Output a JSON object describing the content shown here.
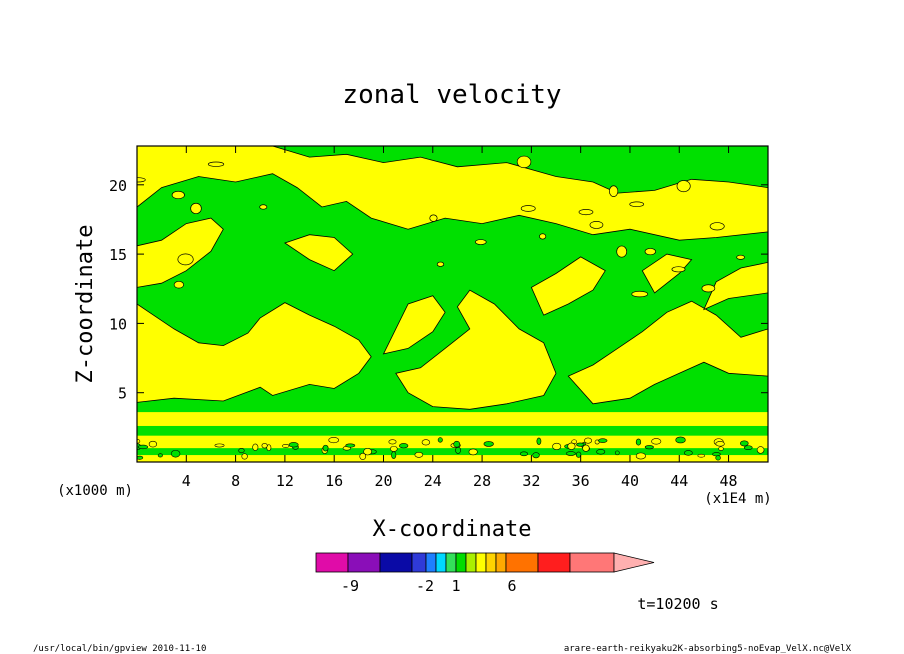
{
  "chart_data": {
    "type": "heatmap",
    "title": "zonal velocity",
    "xlabel": "X-coordinate",
    "ylabel": "Z-coordinate",
    "x_unit": "(x1E4 m)",
    "y_unit": "(x1000 m)",
    "x_ticks": [
      4,
      8,
      12,
      16,
      20,
      24,
      28,
      32,
      36,
      40,
      44,
      48
    ],
    "y_ticks": [
      5,
      10,
      15,
      20
    ],
    "xlim": [
      0,
      51.2
    ],
    "ylim": [
      0,
      22.8
    ],
    "grid": false,
    "time_label": "t=10200 s",
    "colorbar": {
      "colors": [
        "#e00ca8",
        "#8a0eb8",
        "#0a0aa6",
        "#2f3ad8",
        "#1e7fff",
        "#00d8ff",
        "#33e05a",
        "#00dd00",
        "#aaf000",
        "#ffff00",
        "#ffd400",
        "#ffaa00",
        "#ff7200",
        "#ff1e1e",
        "#ff7777",
        "#ffb0b0"
      ],
      "tick_labels": [
        "-9",
        "-2",
        "1",
        "6"
      ],
      "dominant_colors": {
        "negative": "#00e000",
        "positive": "#ffff00"
      }
    }
  },
  "footer": {
    "left": "/usr/local/bin/gpview  2010-11-10",
    "right": "arare-earth-reikyaku2K-absorbing5-noEvap_VelX.nc@VelX"
  }
}
